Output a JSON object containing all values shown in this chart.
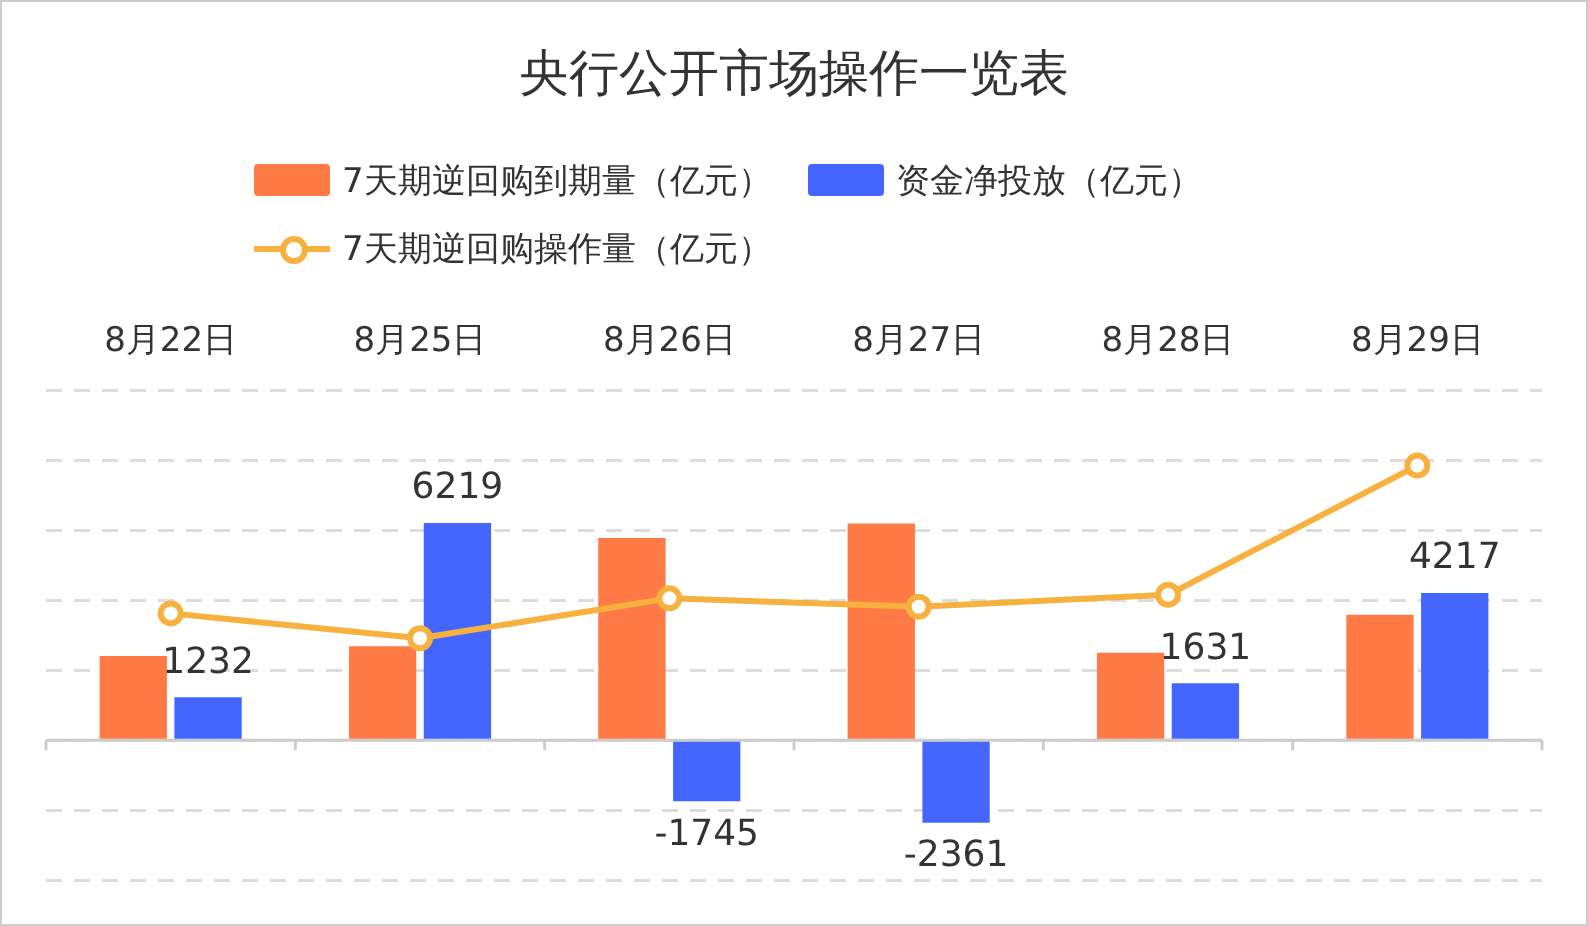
{
  "chart_data": {
    "type": "bar",
    "title": "央行公开市场操作一览表",
    "categories": [
      "8月22日",
      "8月25日",
      "8月26日",
      "8月27日",
      "8月28日",
      "8月29日"
    ],
    "series": [
      {
        "name": "7天期逆回购到期量（亿元）",
        "color": "#ff7a45",
        "values": [
          2410,
          2690,
          5790,
          6200,
          2500,
          3590
        ]
      },
      {
        "name": "资金净投放（亿元）",
        "color": "#4466ff",
        "values": [
          1232,
          6219,
          -1745,
          -2361,
          1631,
          4217
        ],
        "value_labels": [
          "1232",
          "6219",
          "-1745",
          "-2361",
          "1631",
          "4217"
        ]
      },
      {
        "name": "7天期逆回购操作量（亿元）",
        "type": "line",
        "color": "#f7b13f",
        "values": [
          3630,
          2920,
          4060,
          3820,
          4160,
          7860
        ]
      }
    ],
    "ylim": [
      -4000,
      10000
    ],
    "tick_labels": "x",
    "grid": "y",
    "legend": "top",
    "marker": "circle"
  }
}
